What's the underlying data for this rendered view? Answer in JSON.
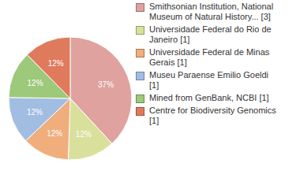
{
  "chart_data": {
    "type": "pie",
    "categories": [
      "Smithsonian Institution, National Museum of Natural History... [3]",
      "Universidade Federal do Rio de Janeiro [1]",
      "Universidade Federal de Minas Gerais [1]",
      "Museu Paraense Emilio Goeldi [1]",
      "Mined from GenBank, NCBI [1]",
      "Centre for Biodiversity Genomics [1]"
    ],
    "values": [
      37,
      12,
      12,
      12,
      12,
      12
    ],
    "value_labels": [
      "37%",
      "12%",
      "12%",
      "12%",
      "12%",
      "12%"
    ],
    "colors": [
      "#dfa29f",
      "#d9e09c",
      "#efae7c",
      "#a2bde2",
      "#9dc97a",
      "#df7b5c"
    ],
    "data_labels": true,
    "legend": "right"
  }
}
